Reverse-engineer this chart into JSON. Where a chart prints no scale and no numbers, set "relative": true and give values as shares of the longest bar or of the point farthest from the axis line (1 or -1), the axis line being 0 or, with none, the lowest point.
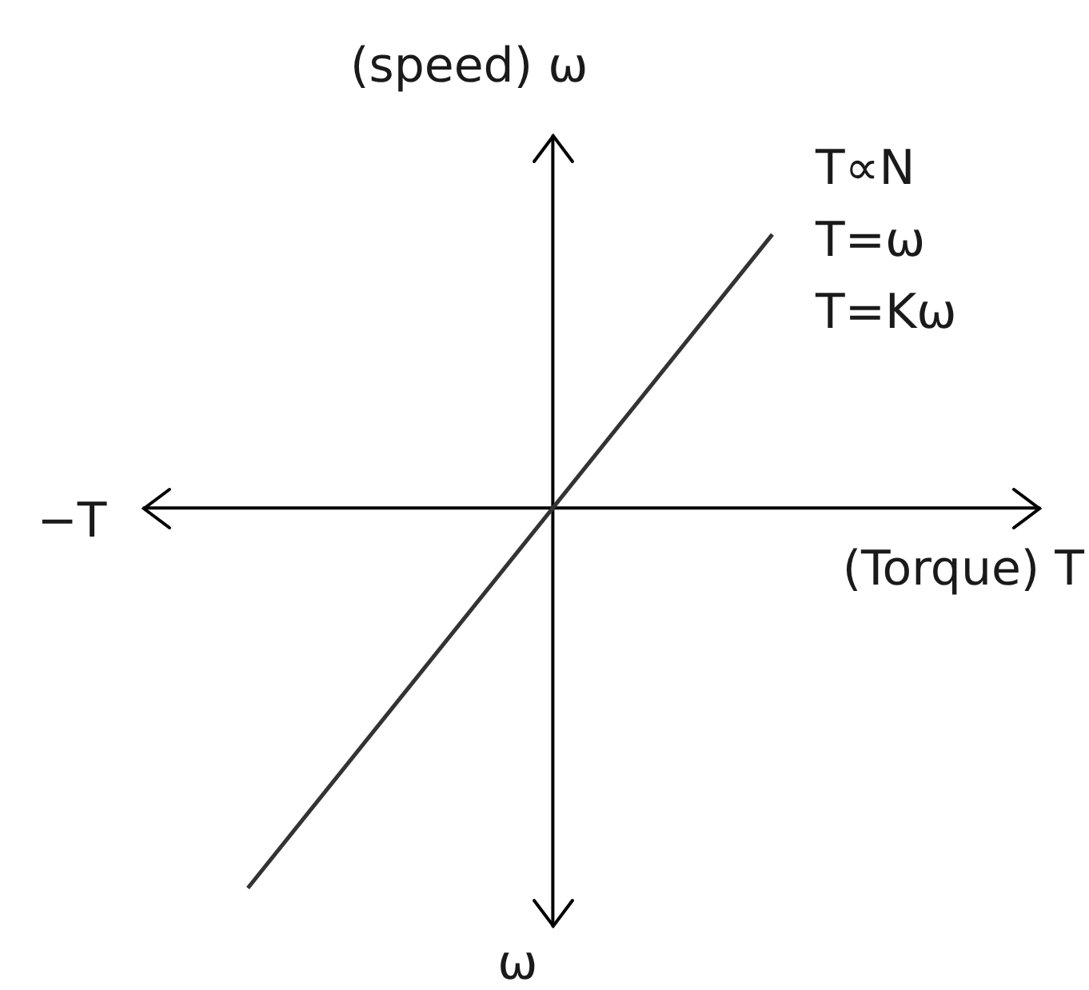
{
  "chart_data": {
    "type": "line",
    "relative": true,
    "xlabel": "(Torque) T",
    "ylabel": "(speed) ω",
    "categories": [
      null,
      null
    ],
    "series": [
      {
        "color": "#333333",
        "values": [
          -1,
          0.72
        ]
      }
    ],
    "annotations": [
      "−T",
      "ω",
      "T∝N",
      "T=ω",
      "T=Kω"
    ]
  }
}
